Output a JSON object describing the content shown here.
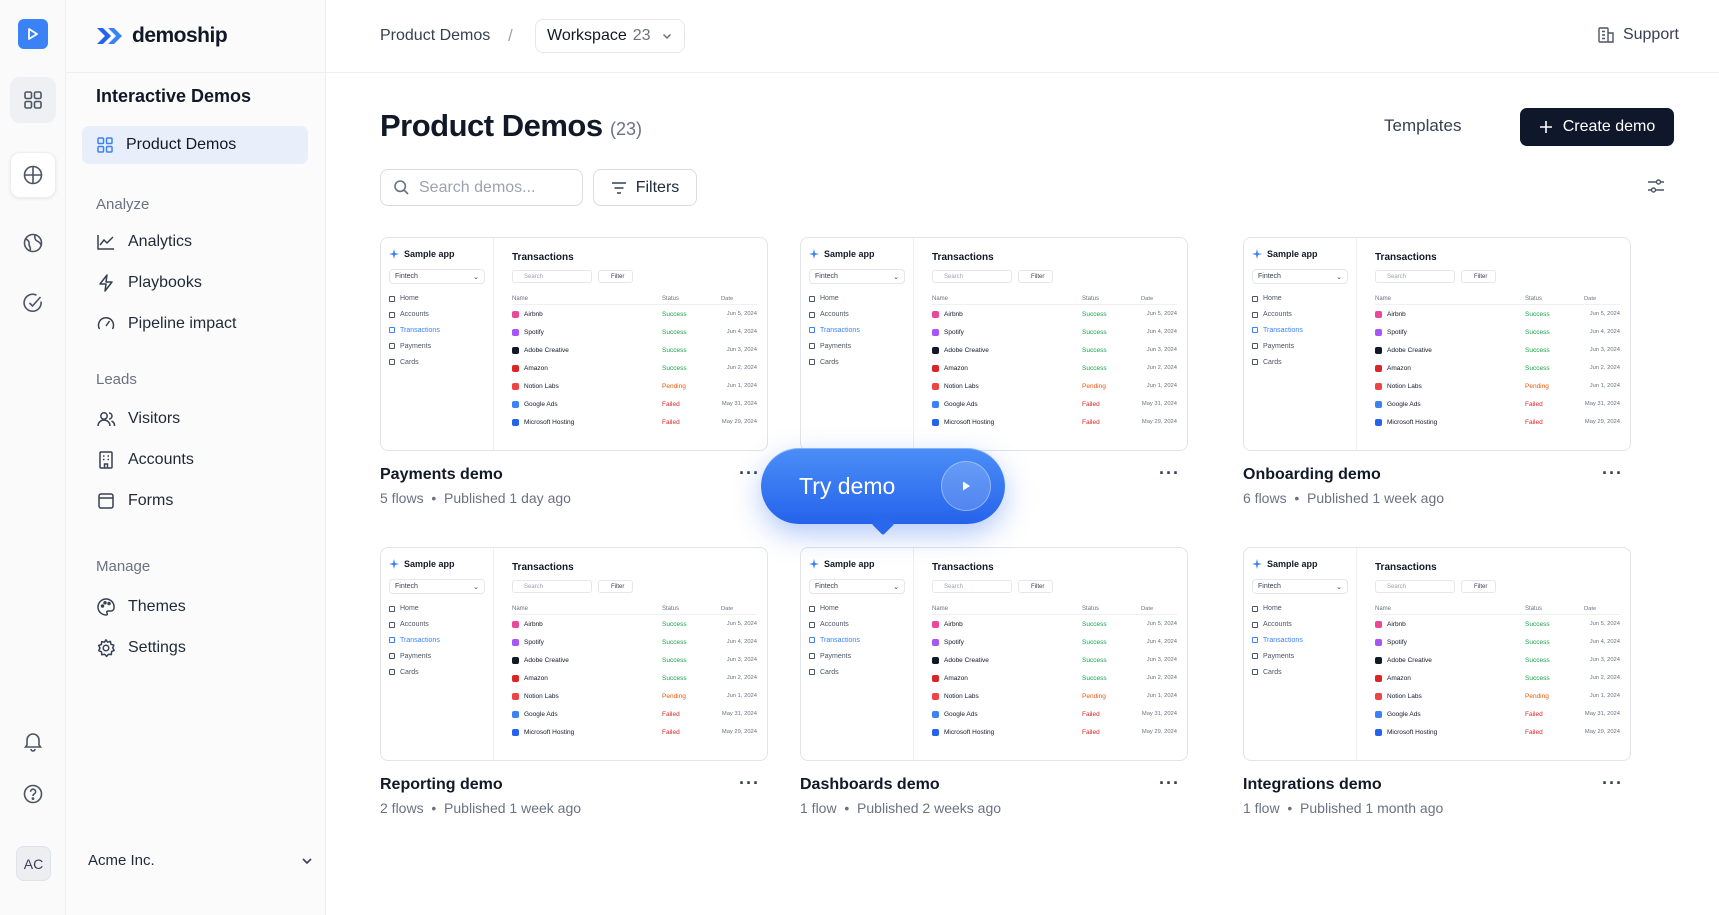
{
  "app": {
    "brand": "demoship"
  },
  "breadcrumb": {
    "root": "Product Demos",
    "separator": "/",
    "workspace_label": "Workspace",
    "workspace_count": "23"
  },
  "header": {
    "support": "Support"
  },
  "sidebar": {
    "title": "Interactive Demos",
    "active_item": "Product Demos",
    "sections": {
      "analyze": "Analyze",
      "leads": "Leads",
      "manage": "Manage"
    },
    "items": {
      "analytics": "Analytics",
      "playbooks": "Playbooks",
      "pipeline": "Pipeline impact",
      "visitors": "Visitors",
      "accounts": "Accounts",
      "forms": "Forms",
      "themes": "Themes",
      "settings": "Settings"
    },
    "org": "Acme Inc."
  },
  "rail": {
    "avatar": "AC"
  },
  "page": {
    "title": "Product Demos",
    "count": "(23)",
    "templates": "Templates",
    "create": "Create demo",
    "search_placeholder": "Search demos...",
    "filters": "Filters"
  },
  "mock": {
    "app": "Sample app",
    "select": "Fintech",
    "nav": [
      "Home",
      "Accounts",
      "Transactions",
      "Payments",
      "Cards"
    ],
    "active_nav": 2,
    "heading": "Transactions",
    "search": "Search",
    "filter": "Filter",
    "cols": [
      "Name",
      "Status",
      "Date"
    ],
    "rows": [
      {
        "name": "Airbnb",
        "status": "Success",
        "date": "Jun 5, 2024",
        "color": "#ec4899"
      },
      {
        "name": "Spotify",
        "status": "Success",
        "date": "Jun 4, 2024",
        "color": "#a855f7"
      },
      {
        "name": "Adobe Creative",
        "status": "Success",
        "date": "Jun 3, 2024",
        "color": "#111827"
      },
      {
        "name": "Amazon",
        "status": "Success",
        "date": "Jun 2, 2024",
        "color": "#dc2626"
      },
      {
        "name": "Notion Labs",
        "status": "Pending",
        "date": "Jun 1, 2024",
        "color": "#ef4444"
      },
      {
        "name": "Google Ads",
        "status": "Failed",
        "date": "May 31, 2024",
        "color": "#3b82f6"
      },
      {
        "name": "Microsoft Hosting",
        "status": "Failed",
        "date": "May 29, 2024",
        "color": "#2563eb"
      }
    ]
  },
  "demos": [
    {
      "title": "Payments demo",
      "flows": "5 flows",
      "published": "Published 1 day ago"
    },
    {
      "title": "",
      "flows": "",
      "published": ""
    },
    {
      "title": "Onboarding demo",
      "flows": "6 flows",
      "published": "Published 1 week ago"
    },
    {
      "title": "Reporting demo",
      "flows": "2 flows",
      "published": "Published 1 week ago"
    },
    {
      "title": "Dashboards demo",
      "flows": "1 flow",
      "published": "Published 2 weeks ago"
    },
    {
      "title": "Integrations demo",
      "flows": "1 flow",
      "published": "Published 1 month ago"
    }
  ],
  "overlay": {
    "cta": "Try demo"
  },
  "colors": {
    "accent": "#3b82f6",
    "primary_button": "#0f172a",
    "success": "#16a34a",
    "pending": "#ea580c",
    "failed": "#dc2626"
  }
}
